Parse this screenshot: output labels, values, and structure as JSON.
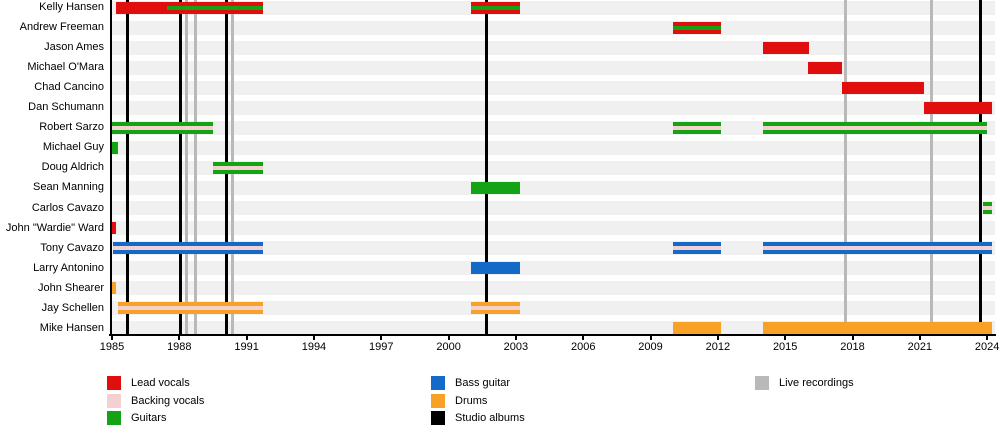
{
  "chart_data": {
    "type": "timeline",
    "description": "Band members timeline (Gantt-style rows per member, roles as colored bars, album/live release vertical lines)",
    "x_axis": {
      "start": 1985,
      "end": 2024.4,
      "ticks": [
        1985,
        1988,
        1991,
        1994,
        1997,
        2000,
        2003,
        2006,
        2009,
        2012,
        2015,
        2018,
        2021,
        2024
      ]
    },
    "colors": {
      "lead_vocals": "#e10e0e",
      "backing_vocals": "#f3d1d1",
      "guitars": "#14a314",
      "bass": "#1569c7",
      "drums": "#f7a226",
      "studio_albums": "#000000",
      "live_recordings": "#b9b9b9",
      "row_guide": "#f0f0f0"
    },
    "members": [
      {
        "name": "Kelly Hansen",
        "segments": [
          {
            "from": 1985.2,
            "to": 1991.75,
            "role": "lead_vocals",
            "stripe": "guitars",
            "stripe_from": 1987.45
          },
          {
            "from": 2001.0,
            "to": 2003.2,
            "role": "lead_vocals",
            "stripe": "guitars"
          }
        ]
      },
      {
        "name": "Andrew Freeman",
        "segments": [
          {
            "from": 2010.0,
            "to": 2012.15,
            "role": "lead_vocals",
            "stripe": "guitars"
          }
        ]
      },
      {
        "name": "Jason Ames",
        "segments": [
          {
            "from": 2014.0,
            "to": 2016.05,
            "role": "lead_vocals"
          }
        ]
      },
      {
        "name": "Michael O'Mara",
        "segments": [
          {
            "from": 2016.0,
            "to": 2017.55,
            "role": "lead_vocals"
          }
        ]
      },
      {
        "name": "Chad Cancino",
        "segments": [
          {
            "from": 2017.55,
            "to": 2021.2,
            "role": "lead_vocals"
          }
        ]
      },
      {
        "name": "Dan Schumann",
        "segments": [
          {
            "from": 2021.2,
            "to": 2024.2,
            "role": "lead_vocals"
          }
        ]
      },
      {
        "name": "Robert Sarzo",
        "segments": [
          {
            "from": 1985.0,
            "to": 1989.5,
            "role": "guitars",
            "stripe": "backing_vocals"
          },
          {
            "from": 2010.0,
            "to": 2012.15,
            "role": "guitars",
            "stripe": "backing_vocals"
          },
          {
            "from": 2014.0,
            "to": 2024.0,
            "role": "guitars",
            "stripe": "backing_vocals"
          }
        ]
      },
      {
        "name": "Michael Guy",
        "segments": [
          {
            "from": 1985.0,
            "to": 1985.25,
            "role": "guitars"
          }
        ]
      },
      {
        "name": "Doug Aldrich",
        "segments": [
          {
            "from": 1989.5,
            "to": 1991.75,
            "role": "guitars",
            "stripe": "backing_vocals"
          }
        ]
      },
      {
        "name": "Sean Manning",
        "segments": [
          {
            "from": 2001.0,
            "to": 2003.2,
            "role": "guitars"
          }
        ]
      },
      {
        "name": "Carlos Cavazo",
        "segments": [
          {
            "from": 2023.8,
            "to": 2024.2,
            "role": "guitars",
            "stripe": "backing_vocals"
          }
        ]
      },
      {
        "name": "John \"Wardie\" Ward",
        "segments": [
          {
            "from": 1985.0,
            "to": 1985.2,
            "role": "lead_vocals"
          }
        ]
      },
      {
        "name": "Tony Cavazo",
        "segments": [
          {
            "from": 1985.05,
            "to": 1991.75,
            "role": "bass",
            "stripe": "backing_vocals"
          },
          {
            "from": 2010.0,
            "to": 2012.15,
            "role": "bass",
            "stripe": "backing_vocals"
          },
          {
            "from": 2014.0,
            "to": 2024.2,
            "role": "bass",
            "stripe": "backing_vocals"
          }
        ]
      },
      {
        "name": "Larry Antonino",
        "segments": [
          {
            "from": 2001.0,
            "to": 2003.2,
            "role": "bass"
          }
        ]
      },
      {
        "name": "John Shearer",
        "segments": [
          {
            "from": 1985.0,
            "to": 1985.2,
            "role": "drums"
          }
        ]
      },
      {
        "name": "Jay Schellen",
        "segments": [
          {
            "from": 1985.25,
            "to": 1991.75,
            "role": "drums",
            "stripe": "backing_vocals"
          },
          {
            "from": 2001.0,
            "to": 2003.2,
            "role": "drums",
            "stripe": "backing_vocals"
          }
        ]
      },
      {
        "name": "Mike Hansen",
        "segments": [
          {
            "from": 2010.0,
            "to": 2012.15,
            "role": "drums"
          },
          {
            "from": 2014.0,
            "to": 2024.2,
            "role": "drums"
          }
        ]
      }
    ],
    "studio_album_years": [
      1985.67,
      1988.05,
      1990.1,
      2001.7,
      2023.7
    ],
    "live_recording_years": [
      1988.3,
      1988.7,
      1990.35,
      2017.7,
      2021.5
    ]
  },
  "legend": {
    "columns": [
      {
        "items": [
          {
            "label": "Lead vocals",
            "color_key": "lead_vocals"
          },
          {
            "label": "Backing vocals",
            "color_key": "backing_vocals"
          },
          {
            "label": "Guitars",
            "color_key": "guitars"
          }
        ]
      },
      {
        "items": [
          {
            "label": "Bass guitar",
            "color_key": "bass"
          },
          {
            "label": "Drums",
            "color_key": "drums"
          },
          {
            "label": "Studio albums",
            "color_key": "studio_albums"
          }
        ]
      },
      {
        "items": [
          {
            "label": "Live recordings",
            "color_key": "live_recordings"
          }
        ]
      }
    ]
  }
}
